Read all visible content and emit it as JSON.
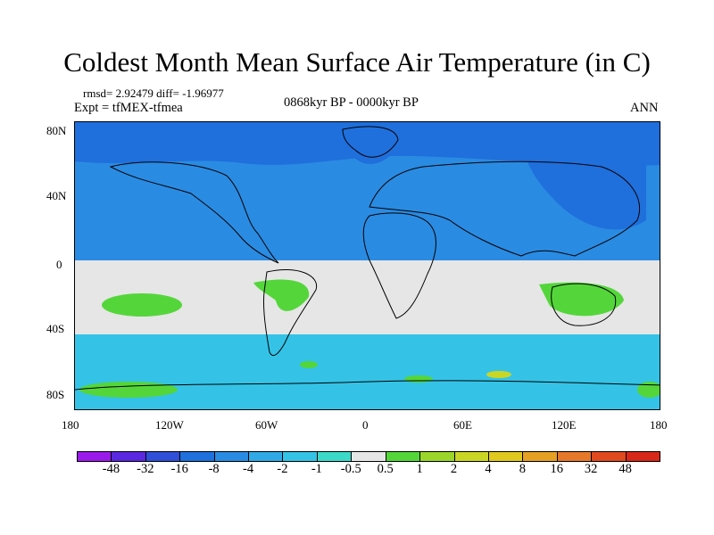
{
  "title": "Coldest Month Mean Surface Air Temperature (in C)",
  "stats": "rmsd= 2.92479 diff= -1.96977",
  "experiment": "Expt = tfMEX-tfmea",
  "period": "0868kyr BP - 0000kyr BP",
  "season": "ANN",
  "axes": {
    "x_labels": [
      "180",
      "120W",
      "60W",
      "0",
      "60E",
      "120E",
      "180"
    ],
    "y_labels": [
      "80N",
      "40N",
      "0",
      "40S",
      "80S"
    ]
  },
  "colorbar": {
    "labels": [
      "-48",
      "-32",
      "-16",
      "-8",
      "-4",
      "-2",
      "-1",
      "-0.5",
      "0.5",
      "1",
      "2",
      "4",
      "8",
      "16",
      "32",
      "48"
    ],
    "colors": [
      "#9a1aea",
      "#5a28e0",
      "#2f4fd8",
      "#1f6fdc",
      "#2a8be2",
      "#31a9e6",
      "#34c3e6",
      "#3cd8c8",
      "#e6e6e6",
      "#54d63a",
      "#9bd62a",
      "#cad624",
      "#e0c81e",
      "#e6a024",
      "#e6782a",
      "#e04a1e",
      "#d8281a"
    ]
  },
  "map": {
    "ocean_color": "#e6e6e6",
    "cool_color": "#2a8be2",
    "mild_cool_color": "#34c3e6",
    "cold_color": "#1f6fdc",
    "warm_color": "#54d63a",
    "hot_color": "#cad624"
  }
}
